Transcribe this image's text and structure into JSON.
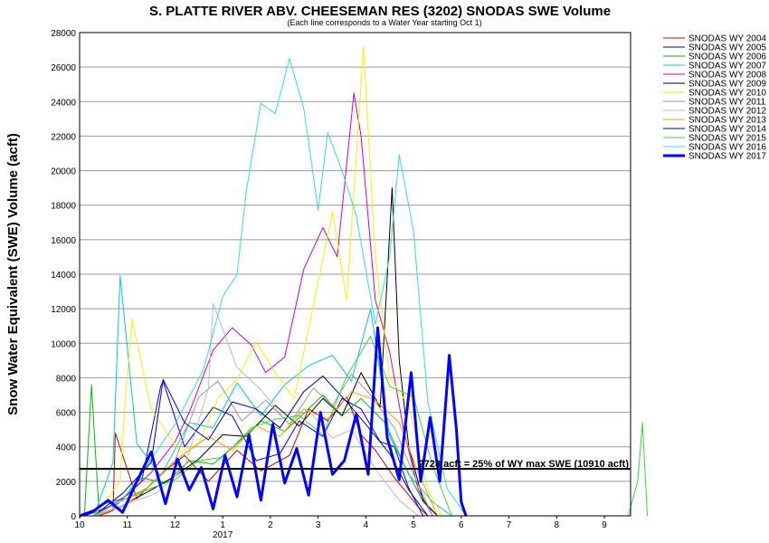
{
  "chart_data": {
    "type": "line",
    "title": "S. PLATTE RIVER ABV. CHEESEMAN RES (3202) SNODAS SWE Volume",
    "subtitle": "(Each line corresponds to a Water Year starting Oct 1)",
    "ylabel": "Snow Water Equivalent (SWE) Volume (acft)",
    "xlabel": "",
    "ylim": [
      0,
      28000
    ],
    "yticks": [
      "0",
      "2000",
      "4000",
      "6000",
      "8000",
      "10000",
      "12000",
      "14000",
      "16000",
      "18000",
      "20000",
      "22000",
      "24000",
      "26000",
      "28000"
    ],
    "xlim": [
      0,
      11.55
    ],
    "xticks": [
      {
        "pos": 0,
        "label": "10"
      },
      {
        "pos": 1,
        "label": "11"
      },
      {
        "pos": 2,
        "label": "12"
      },
      {
        "pos": 3,
        "label": "1"
      },
      {
        "pos": 4,
        "label": "2"
      },
      {
        "pos": 5,
        "label": "3"
      },
      {
        "pos": 6,
        "label": "4"
      },
      {
        "pos": 7,
        "label": "5"
      },
      {
        "pos": 8,
        "label": "6"
      },
      {
        "pos": 9,
        "label": "7"
      },
      {
        "pos": 10,
        "label": "8"
      },
      {
        "pos": 11,
        "label": "9"
      }
    ],
    "year_label": "2017",
    "grid": true,
    "legend_position": "right",
    "threshold": {
      "value": 2728,
      "label": "2728 acft = 25% of WY max SWE (10910 acft)"
    },
    "series": [
      {
        "name": "SNODAS WY 2004",
        "color": "#cc0000",
        "bold": false,
        "x": [
          0.4,
          0.7,
          0.75,
          1.2,
          1.7,
          2.2,
          2.7,
          3.3,
          3.8,
          4.4,
          4.8,
          5.2,
          5.6,
          5.9,
          6.2,
          6.6,
          6.9,
          7.1,
          7.3
        ],
        "y": [
          0,
          300,
          4800,
          1000,
          2400,
          3500,
          2000,
          3800,
          2600,
          3500,
          6200,
          5500,
          6900,
          4700,
          3800,
          2200,
          1200,
          500,
          0
        ]
      },
      {
        "name": "SNODAS WY 2005",
        "color": "#0000cc",
        "bold": false,
        "x": [
          0.1,
          0.8,
          1.3,
          1.7,
          1.75,
          2.2,
          2.8,
          3.2,
          3.7,
          4.2,
          4.6,
          5.1,
          5.5,
          5.9,
          6.3,
          6.6,
          6.9,
          7.2
        ],
        "y": [
          0,
          700,
          2000,
          7500,
          7800,
          4000,
          6300,
          5800,
          3200,
          3600,
          5500,
          4600,
          6800,
          6200,
          4300,
          4000,
          1600,
          0
        ]
      },
      {
        "name": "SNODAS WY 2006",
        "color": "#00bb00",
        "bold": false,
        "x": [
          0.1,
          0.25,
          0.3,
          0.4,
          0.9,
          1.3,
          1.8,
          2.3,
          2.8,
          3.3,
          3.8,
          4.3,
          4.8,
          5.1,
          5.5,
          5.9,
          6.4,
          6.8,
          7.2,
          7.5
        ],
        "y": [
          0,
          7600,
          5200,
          600,
          1000,
          2200,
          1900,
          3200,
          3000,
          4200,
          5500,
          4900,
          6200,
          7000,
          5800,
          6800,
          5400,
          3000,
          800,
          0
        ]
      },
      {
        "name": "SNODAS WY 2007",
        "color": "#00cccc",
        "bold": false,
        "x": [
          0.3,
          0.7,
          0.85,
          1.2,
          1.7,
          2.3,
          2.8,
          3.3,
          3.8,
          4.3,
          4.8,
          5.3,
          5.7,
          6.1,
          6.5,
          6.9,
          7.4,
          7.8
        ],
        "y": [
          0,
          3100,
          13900,
          4200,
          2300,
          5400,
          5100,
          7700,
          5800,
          7600,
          8700,
          9300,
          7800,
          12000,
          4600,
          2400,
          800,
          0
        ]
      },
      {
        "name": "SNODAS WY 2008",
        "color": "#cc00cc",
        "bold": false,
        "x": [
          0.3,
          1.0,
          1.5,
          2.0,
          2.3,
          2.8,
          3.2,
          3.6,
          3.9,
          4.3,
          4.7,
          5.1,
          5.4,
          5.75,
          5.9,
          6.2,
          6.5,
          6.8,
          7.1,
          7.4
        ],
        "y": [
          0,
          1200,
          2500,
          4300,
          6000,
          9600,
          10900,
          9900,
          8300,
          9200,
          14300,
          16700,
          15000,
          24500,
          22000,
          12500,
          9500,
          4900,
          1500,
          0
        ]
      },
      {
        "name": "SNODAS WY 2009",
        "color": "#000000",
        "bold": false,
        "x": [
          0.3,
          0.9,
          1.5,
          2.0,
          2.5,
          3.0,
          3.5,
          4.1,
          4.6,
          5.1,
          5.5,
          5.9,
          6.3,
          6.55,
          6.7,
          6.9,
          7.2,
          7.5
        ],
        "y": [
          0,
          600,
          1500,
          2300,
          3300,
          4700,
          4600,
          6400,
          5200,
          6800,
          5800,
          8300,
          6300,
          19000,
          9000,
          4000,
          900,
          0
        ]
      },
      {
        "name": "SNODAS WY 2010",
        "color": "#ffee00",
        "bold": false,
        "x": [
          0.3,
          0.85,
          0.95,
          1.1,
          1.5,
          2.1,
          2.5,
          2.9,
          3.3,
          3.7,
          4.1,
          4.5,
          4.9,
          5.3,
          5.6,
          5.95,
          6.2,
          6.5,
          6.9,
          7.3,
          7.6
        ],
        "y": [
          0,
          2000,
          6500,
          11400,
          6200,
          3700,
          4200,
          6800,
          7900,
          10100,
          8300,
          6800,
          12200,
          17600,
          12500,
          27200,
          15000,
          8000,
          6400,
          1500,
          0
        ]
      },
      {
        "name": "SNODAS WY 2011",
        "color": "#999999",
        "bold": false,
        "x": [
          0.3,
          0.9,
          1.4,
          2.0,
          2.5,
          2.9,
          3.4,
          3.9,
          4.4,
          4.9,
          5.3,
          5.7,
          6.1,
          6.6,
          7.0,
          7.4
        ],
        "y": [
          0,
          900,
          1600,
          3200,
          6900,
          7800,
          5500,
          6700,
          5300,
          7400,
          6400,
          8200,
          7000,
          5100,
          2400,
          0
        ]
      },
      {
        "name": "SNODAS WY 2012",
        "color": "#bbbbbb",
        "bold": false,
        "x": [
          0.3,
          1.0,
          1.6,
          2.2,
          2.7,
          2.8,
          3.3,
          3.8,
          4.3,
          4.8,
          5.3,
          5.7,
          6.2,
          6.7,
          7.1
        ],
        "y": [
          0,
          700,
          1300,
          2800,
          7400,
          12300,
          8600,
          7300,
          5600,
          6100,
          4500,
          5000,
          2700,
          900,
          0
        ]
      },
      {
        "name": "SNODAS WY 2013",
        "color": "#ff9900",
        "bold": false,
        "x": [
          0.3,
          0.9,
          1.5,
          2.1,
          2.7,
          3.2,
          3.7,
          4.2,
          4.7,
          5.2,
          5.7,
          6.2,
          6.7,
          7.1,
          7.5
        ],
        "y": [
          0,
          500,
          1800,
          3400,
          4600,
          3800,
          5200,
          4600,
          6200,
          5600,
          7200,
          6700,
          5400,
          2500,
          0
        ]
      },
      {
        "name": "SNODAS WY 2014",
        "color": "#000099",
        "bold": false,
        "x": [
          0.3,
          0.9,
          1.5,
          1.75,
          2.2,
          2.7,
          3.2,
          3.7,
          4.2,
          4.7,
          5.1,
          5.6,
          6.0,
          6.5,
          6.9,
          7.3
        ],
        "y": [
          0,
          1300,
          3100,
          7900,
          5400,
          4400,
          6600,
          6200,
          5100,
          7200,
          8100,
          6600,
          5300,
          3600,
          1500,
          0
        ]
      },
      {
        "name": "SNODAS WY 2015",
        "color": "#33dd33",
        "bold": false,
        "x": [
          0.3,
          0.9,
          1.5,
          2.0,
          2.5,
          3.0,
          3.6,
          4.1,
          4.6,
          5.1,
          5.6,
          6.1,
          6.5,
          7.0,
          7.4,
          7.8,
          11.5,
          11.7,
          11.8,
          11.9
        ],
        "y": [
          0,
          900,
          1600,
          2100,
          3200,
          3400,
          5100,
          5600,
          5800,
          4700,
          8100,
          10400,
          7500,
          6900,
          2900,
          0,
          0,
          2000,
          5400,
          0
        ]
      },
      {
        "name": "SNODAS WY 2016",
        "color": "#33dddd",
        "bold": false,
        "x": [
          0.3,
          0.9,
          1.4,
          2.0,
          2.6,
          3.0,
          3.3,
          3.5,
          3.8,
          4.1,
          4.4,
          4.7,
          5.0,
          5.2,
          5.5,
          5.8,
          6.2,
          6.5,
          6.7,
          7.0,
          7.3,
          7.7,
          8.1
        ],
        "y": [
          0,
          900,
          2900,
          5300,
          8500,
          12700,
          14000,
          18900,
          23900,
          23300,
          26500,
          23600,
          17700,
          22200,
          20000,
          17400,
          11100,
          15000,
          20900,
          16500,
          6600,
          1600,
          0
        ]
      },
      {
        "name": "SNODAS WY 2017",
        "color": "#0000ff",
        "bold": true,
        "x": [
          0.0,
          0.3,
          0.6,
          0.9,
          1.2,
          1.5,
          1.8,
          2.05,
          2.3,
          2.55,
          2.8,
          3.05,
          3.3,
          3.55,
          3.8,
          4.05,
          4.3,
          4.55,
          4.8,
          5.05,
          5.3,
          5.55,
          5.8,
          6.05,
          6.25,
          6.45,
          6.7,
          6.95,
          7.15,
          7.35,
          7.55,
          7.75,
          7.9,
          8.0,
          8.1
        ],
        "y": [
          0,
          300,
          900,
          200,
          2000,
          3700,
          700,
          3300,
          1500,
          2800,
          400,
          3500,
          1100,
          4700,
          900,
          5300,
          1900,
          3900,
          1200,
          6000,
          2400,
          3200,
          5900,
          2400,
          10900,
          4500,
          2100,
          8300,
          2000,
          5700,
          2000,
          9300,
          5000,
          800,
          0
        ]
      }
    ]
  }
}
